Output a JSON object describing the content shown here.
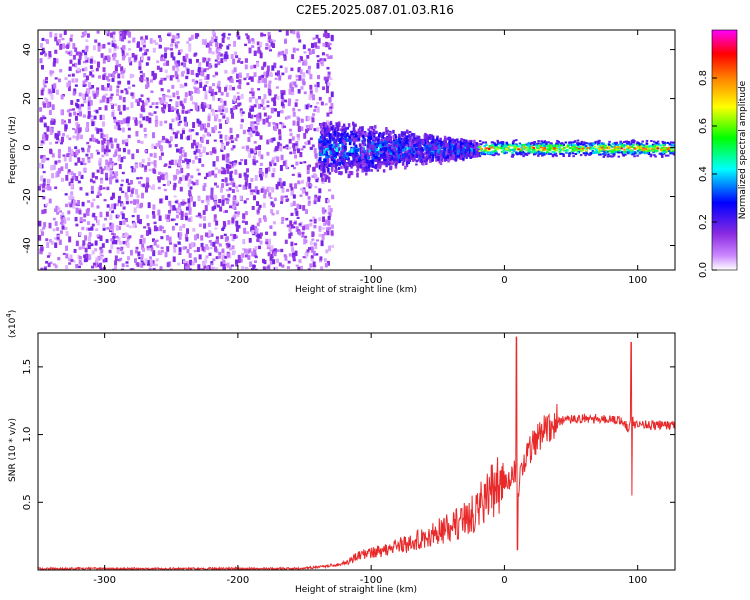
{
  "title": "C2E5.2025.087.01.03.R16",
  "chart_data": [
    {
      "type": "heatmap",
      "xlabel": "Height of straight line (km)",
      "ylabel": "Frequency (Hz)",
      "xlim": [
        -350,
        128
      ],
      "ylim": [
        -50,
        48
      ],
      "x_ticks": [
        -300,
        -200,
        -100,
        0,
        100
      ],
      "x_tick_labels": [
        "-300",
        "-200",
        "-100",
        "0",
        "100"
      ],
      "y_ticks": [
        40,
        20,
        0,
        -20,
        -40
      ],
      "y_tick_labels": [
        "40",
        "20",
        "0",
        "-20",
        "-40"
      ],
      "colorbar": {
        "label": "Normalized spectral amplitude",
        "range": [
          0,
          1
        ],
        "ticks": [
          0.0,
          0.2,
          0.4,
          0.6,
          0.8
        ],
        "tick_labels": [
          "0.0",
          "0.2",
          "0.4",
          "0.6",
          "0.8"
        ],
        "colors": [
          "#ffffff",
          "#8a2be2",
          "#0000ff",
          "#00ffff",
          "#00ff00",
          "#ffff00",
          "#ff8000",
          "#ff0000",
          "#ff00ff"
        ]
      },
      "regions": [
        {
          "x": [
            -350,
            -140
          ],
          "freq": [
            -50,
            48
          ],
          "amplitude": 0.12,
          "pattern": "broadband speckle"
        },
        {
          "x": [
            -140,
            -20
          ],
          "freq": [
            -15,
            12
          ],
          "amplitude": 0.35,
          "pattern": "narrowing band"
        },
        {
          "x": [
            -20,
            128
          ],
          "freq": [
            -2,
            2
          ],
          "amplitude": 0.8,
          "pattern": "narrow band near 0 Hz"
        }
      ]
    },
    {
      "type": "line",
      "xlabel": "Height of straight line (km)",
      "ylabel": "SNR (10 * v/v)",
      "y_scale_note": "(x10",
      "y_scale_exponent": "4",
      "xlim": [
        -350,
        128
      ],
      "ylim": [
        0,
        1.75
      ],
      "x_ticks": [
        -300,
        -200,
        -100,
        0,
        100
      ],
      "x_tick_labels": [
        "-300",
        "-200",
        "-100",
        "0",
        "100"
      ],
      "y_ticks": [
        0.5,
        1.0,
        1.5
      ],
      "y_tick_labels": [
        "0.5",
        "1.0",
        "1.5"
      ],
      "series": [
        {
          "name": "SNR",
          "color": "#e8292a",
          "x": [
            -350,
            -300,
            -250,
            -200,
            -160,
            -140,
            -120,
            -110,
            -100,
            -90,
            -80,
            -70,
            -60,
            -50,
            -40,
            -30,
            -20,
            -15,
            -10,
            -5,
            0,
            5,
            8,
            10,
            12,
            15,
            20,
            25,
            30,
            35,
            40,
            50,
            60,
            70,
            80,
            90,
            93,
            95,
            97,
            100,
            110,
            120,
            128
          ],
          "values": [
            0.01,
            0.01,
            0.01,
            0.01,
            0.01,
            0.02,
            0.05,
            0.1,
            0.13,
            0.15,
            0.18,
            0.2,
            0.24,
            0.28,
            0.32,
            0.38,
            0.45,
            0.52,
            0.58,
            0.62,
            0.64,
            0.68,
            0.75,
            0.55,
            0.7,
            0.8,
            0.9,
            0.98,
            1.04,
            1.08,
            1.1,
            1.11,
            1.12,
            1.12,
            1.11,
            1.1,
            1.02,
            1.15,
            1.08,
            1.08,
            1.07,
            1.07,
            1.07
          ],
          "spikes": [
            {
              "x": 9,
              "peak": 1.72,
              "min": 0.15
            },
            {
              "x": 95,
              "peak": 1.68,
              "min": 0.55
            }
          ]
        }
      ]
    }
  ]
}
